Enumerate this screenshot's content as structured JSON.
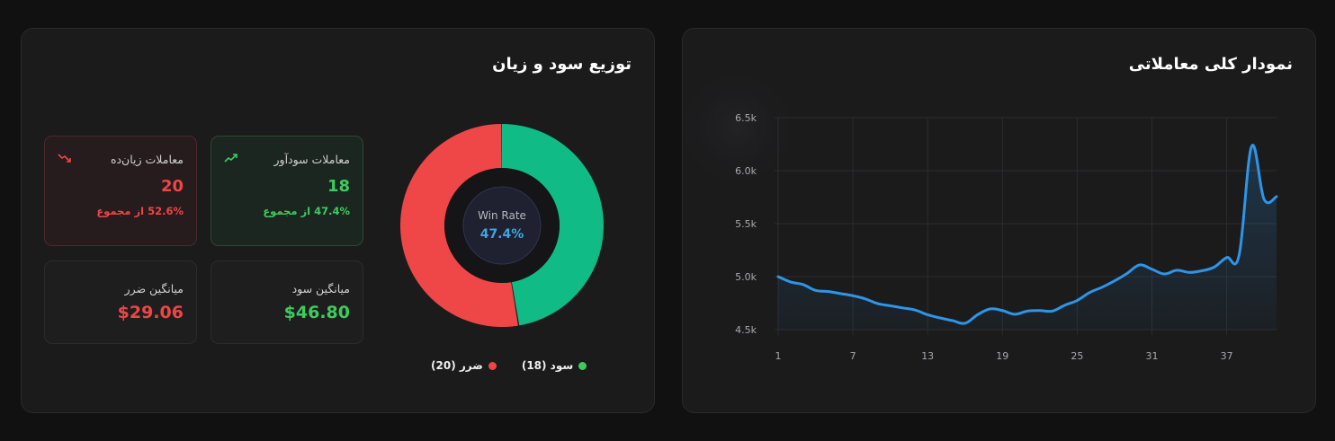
{
  "left_panel": {
    "title": "توزیع سود و زیان",
    "cards": {
      "winning": {
        "label": "معاملات سودآور",
        "icon": "trending-up-icon",
        "value": "18",
        "sub": "47.4% از مجموع"
      },
      "losing": {
        "label": "معاملات زیان‌ده",
        "icon": "trending-down-icon",
        "value": "20",
        "sub": "52.6% از مجموع"
      },
      "avg_profit": {
        "label": "میانگین سود",
        "value": "$46.80"
      },
      "avg_loss": {
        "label": "میانگین ضرر",
        "value": "$29.06"
      }
    },
    "donut": {
      "center_label": "Win Rate",
      "center_value": "47.4%",
      "legend": [
        {
          "label": "سود (18)",
          "color": "#3ecb5e"
        },
        {
          "label": "ضرر (20)",
          "color": "#f04545"
        }
      ]
    }
  },
  "right_panel": {
    "title": "نمودار کلی معاملاتی"
  },
  "colors": {
    "win": "#10bb85",
    "loss": "#ef4747",
    "line": "#2e95e8",
    "accent_blue": "#3aa8e0"
  },
  "chart_data": [
    {
      "type": "pie",
      "title": "توزیع سود و زیان",
      "categories": [
        "سود",
        "ضرر"
      ],
      "values": [
        18,
        20
      ],
      "colors": [
        "#10bb85",
        "#ef4747"
      ],
      "center_text": "Win Rate 47.4%",
      "legend_position": "bottom"
    },
    {
      "type": "area",
      "title": "نمودار کلی معاملاتی",
      "xlabel": "",
      "ylabel": "",
      "x": [
        1,
        2,
        3,
        4,
        5,
        6,
        7,
        8,
        9,
        10,
        11,
        12,
        13,
        14,
        15,
        16,
        17,
        18,
        19,
        20,
        21,
        22,
        23,
        24,
        25,
        26,
        27,
        28,
        29,
        30,
        31,
        32,
        33,
        34,
        35,
        36,
        37,
        38,
        39,
        40,
        41
      ],
      "values": [
        5000,
        4950,
        4925,
        4870,
        4860,
        4840,
        4820,
        4790,
        4745,
        4725,
        4705,
        4685,
        4640,
        4610,
        4585,
        4560,
        4640,
        4695,
        4680,
        4645,
        4675,
        4680,
        4675,
        4730,
        4775,
        4850,
        4900,
        4960,
        5030,
        5110,
        5070,
        5025,
        5060,
        5040,
        5055,
        5090,
        5180,
        5205,
        6230,
        5730,
        5755
      ],
      "y_ticks": [
        "4.5k",
        "5.0k",
        "5.5k",
        "6.0k",
        "6.5k"
      ],
      "x_ticks": [
        "1",
        "7",
        "13",
        "19",
        "25",
        "31",
        "37"
      ],
      "ylim": [
        4500,
        6500
      ],
      "grid": true
    }
  ]
}
